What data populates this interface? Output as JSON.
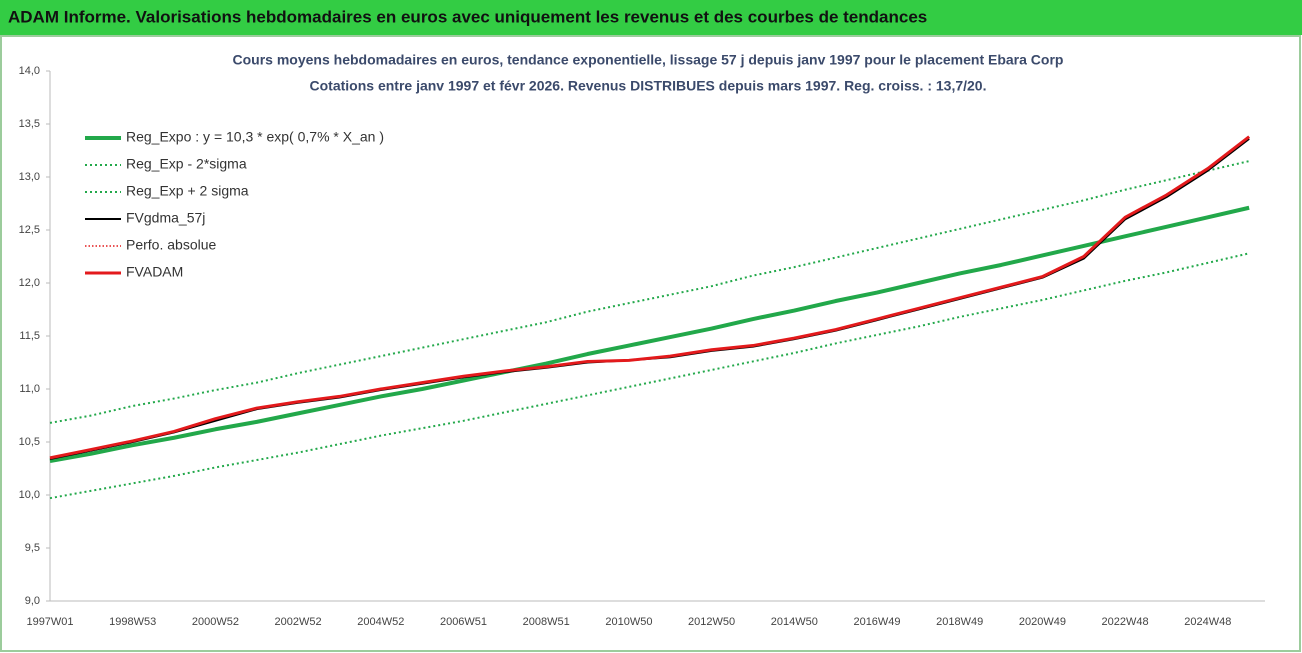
{
  "header": {
    "title": "ADAM Informe. Valorisations hebdomadaires en euros avec uniquement les revenus et des courbes de tendances"
  },
  "chart_data": {
    "type": "line",
    "title": "Cours moyens hebdomadaires en euros, tendance exponentielle, lissage 57 j depuis janv 1997  pour le placement Ebara Corp",
    "subtitle": "Cotations entre janv 1997 et févr 2026. Revenus DISTRIBUES depuis mars 1997. Reg. croiss. : 13,7/20.",
    "categories": [
      "1997W01",
      null,
      "1998W53",
      null,
      "2000W52",
      null,
      "2002W52",
      null,
      "2004W52",
      null,
      "2006W51",
      null,
      "2008W51",
      null,
      "2010W50",
      null,
      "2012W50",
      null,
      "2014W50",
      null,
      "2016W49",
      null,
      "2018W49",
      null,
      "2020W49",
      null,
      "2022W48",
      null,
      "2024W48",
      null
    ],
    "ylim": [
      9,
      14
    ],
    "yticks": [
      {
        "value": 9,
        "label": "9,0"
      },
      {
        "value": 9.5,
        "label": "9,5"
      },
      {
        "value": 10,
        "label": "10,0"
      },
      {
        "value": 10.5,
        "label": "10,5"
      },
      {
        "value": 11,
        "label": "11,0"
      },
      {
        "value": 11.5,
        "label": "11,5"
      },
      {
        "value": 12,
        "label": "12,0"
      },
      {
        "value": 12.5,
        "label": "12,5"
      },
      {
        "value": 13,
        "label": "13,0"
      },
      {
        "value": 13.5,
        "label": "13,5"
      },
      {
        "value": 14,
        "label": "14,0"
      }
    ],
    "grid": false,
    "legend": "top-left",
    "series": [
      {
        "name": "Reg_Expo : y = 10,3 * exp( 0,7% *  X_an )",
        "color": "#22a84a",
        "width": 4,
        "dash": "solid",
        "values": [
          10.32,
          10.39,
          10.47,
          10.54,
          10.62,
          10.69,
          10.77,
          10.85,
          10.93,
          11.0,
          11.08,
          11.16,
          11.24,
          11.33,
          11.41,
          11.49,
          11.57,
          11.66,
          11.74,
          11.83,
          11.91,
          12.0,
          12.09,
          12.17,
          12.26,
          12.35,
          12.44,
          12.53,
          12.62,
          12.71
        ]
      },
      {
        "name": "Reg_Exp - 2*sigma",
        "color": "#22a84a",
        "width": 2,
        "dash": "dotted",
        "values": [
          9.97,
          10.04,
          10.11,
          10.18,
          10.26,
          10.33,
          10.4,
          10.48,
          10.56,
          10.63,
          10.7,
          10.78,
          10.86,
          10.94,
          11.02,
          11.1,
          11.18,
          11.26,
          11.34,
          11.43,
          11.51,
          11.59,
          11.68,
          11.76,
          11.84,
          11.93,
          12.02,
          12.1,
          12.19,
          12.28
        ]
      },
      {
        "name": "Reg_Exp + 2 sigma",
        "color": "#22a84a",
        "width": 2,
        "dash": "dotted",
        "values": [
          10.68,
          10.75,
          10.84,
          10.91,
          10.99,
          11.06,
          11.15,
          11.23,
          11.31,
          11.39,
          11.47,
          11.55,
          11.63,
          11.73,
          11.81,
          11.89,
          11.97,
          12.07,
          12.15,
          12.24,
          12.33,
          12.42,
          12.51,
          12.6,
          12.69,
          12.78,
          12.88,
          12.97,
          13.06,
          13.15
        ]
      },
      {
        "name": "FVgdma_57j",
        "color": "#000000",
        "width": 2,
        "dash": "solid",
        "values": [
          10.34,
          10.42,
          10.5,
          10.59,
          10.7,
          10.81,
          10.87,
          10.92,
          10.99,
          11.05,
          11.11,
          11.16,
          11.2,
          11.25,
          11.27,
          11.3,
          11.36,
          11.4,
          11.47,
          11.55,
          11.65,
          11.75,
          11.85,
          11.95,
          12.05,
          12.23,
          12.6,
          12.81,
          13.06,
          13.36
        ]
      },
      {
        "name": "Perfo. absolue",
        "color": "#e31a1c",
        "width": 1.5,
        "dash": "dotted",
        "values": [
          10.35,
          10.43,
          10.51,
          10.6,
          10.72,
          10.82,
          10.88,
          10.93,
          11.0,
          11.06,
          11.12,
          11.17,
          11.21,
          11.26,
          11.27,
          11.31,
          11.37,
          11.41,
          11.48,
          11.56,
          11.66,
          11.76,
          11.86,
          11.96,
          12.06,
          12.25,
          12.62,
          12.83,
          13.08,
          13.38
        ]
      },
      {
        "name": "FVADAM",
        "color": "#e31a1c",
        "width": 3,
        "dash": "solid",
        "values": [
          10.35,
          10.43,
          10.51,
          10.6,
          10.72,
          10.82,
          10.88,
          10.93,
          11.0,
          11.06,
          11.12,
          11.17,
          11.21,
          11.26,
          11.27,
          11.31,
          11.37,
          11.41,
          11.48,
          11.56,
          11.66,
          11.76,
          11.86,
          11.96,
          12.06,
          12.25,
          12.62,
          12.83,
          13.08,
          13.38
        ]
      }
    ]
  }
}
